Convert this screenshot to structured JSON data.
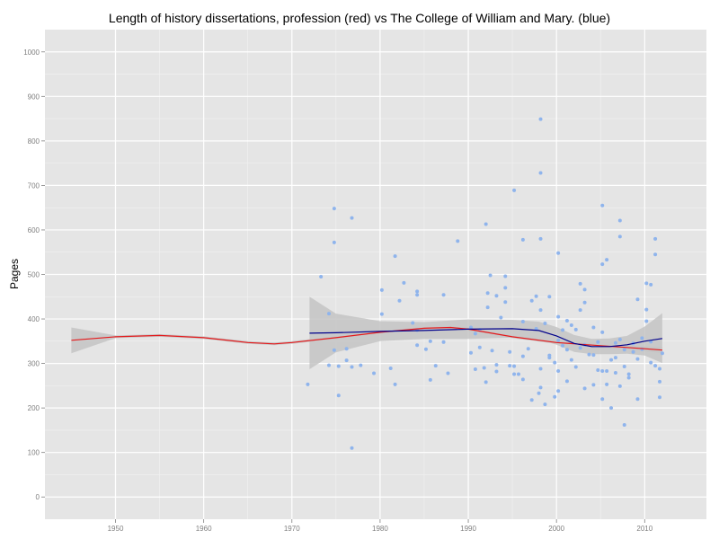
{
  "chart_data": {
    "type": "scatter",
    "title": "Length of history dissertations, profession (red) vs The College of William and Mary. (blue)",
    "xlabel": "",
    "ylabel": "Pages",
    "xlim": [
      1942,
      2017
    ],
    "ylim": [
      -50,
      1050
    ],
    "x_ticks": [
      1950,
      1960,
      1970,
      1980,
      1990,
      2000,
      2010
    ],
    "y_ticks": [
      0,
      100,
      200,
      300,
      400,
      500,
      600,
      700,
      800,
      900,
      1000
    ],
    "grid": true,
    "legend": "none",
    "colors": {
      "panel": "#e5e5e5",
      "grid_major": "#ffffff",
      "grid_minor": "#f2f2f2",
      "points": "#8fb4ec",
      "band": "#c4c4c4",
      "profession_line": "#e41a1c",
      "wm_line": "#00008b"
    },
    "series": [
      {
        "kind": "points",
        "values": [
          [
            1971.8,
            253
          ],
          [
            1973.3,
            495
          ],
          [
            1974.2,
            412
          ],
          [
            1974.2,
            296
          ],
          [
            1974.8,
            648
          ],
          [
            1974.8,
            572
          ],
          [
            1974.8,
            330
          ],
          [
            1975.3,
            228
          ],
          [
            1975.3,
            294
          ],
          [
            1976.2,
            307
          ],
          [
            1976.2,
            333
          ],
          [
            1976.8,
            627
          ],
          [
            1976.8,
            110
          ],
          [
            1976.8,
            292
          ],
          [
            1977.8,
            296
          ],
          [
            1979.3,
            278
          ],
          [
            1980.2,
            465
          ],
          [
            1980.2,
            411
          ],
          [
            1981.2,
            289
          ],
          [
            1981.7,
            541
          ],
          [
            1981.7,
            253
          ],
          [
            1982.2,
            441
          ],
          [
            1982.7,
            481
          ],
          [
            1983.7,
            391
          ],
          [
            1984.2,
            454
          ],
          [
            1984.2,
            462
          ],
          [
            1984.2,
            375
          ],
          [
            1984.2,
            341
          ],
          [
            1985.2,
            332
          ],
          [
            1985.7,
            263
          ],
          [
            1985.7,
            350
          ],
          [
            1986.3,
            295
          ],
          [
            1987.2,
            348
          ],
          [
            1987.2,
            454
          ],
          [
            1987.7,
            278
          ],
          [
            1988.8,
            575
          ],
          [
            1990.3,
            381
          ],
          [
            1990.3,
            324
          ],
          [
            1990.8,
            287
          ],
          [
            1990.8,
            367
          ],
          [
            1991.3,
            375
          ],
          [
            1991.3,
            336
          ],
          [
            1991.8,
            290
          ],
          [
            1992.0,
            613
          ],
          [
            1992.0,
            258
          ],
          [
            1992.2,
            426
          ],
          [
            1992.2,
            458
          ],
          [
            1992.5,
            498
          ],
          [
            1992.7,
            329
          ],
          [
            1993.2,
            297
          ],
          [
            1993.2,
            452
          ],
          [
            1993.2,
            282
          ],
          [
            1993.7,
            403
          ],
          [
            1994.2,
            496
          ],
          [
            1994.2,
            470
          ],
          [
            1994.2,
            438
          ],
          [
            1994.7,
            295
          ],
          [
            1994.7,
            326
          ],
          [
            1995.2,
            689
          ],
          [
            1995.2,
            276
          ],
          [
            1995.2,
            294
          ],
          [
            1995.7,
            276
          ],
          [
            1996.2,
            578
          ],
          [
            1996.2,
            394
          ],
          [
            1996.2,
            316
          ],
          [
            1996.2,
            264
          ],
          [
            1996.8,
            333
          ],
          [
            1997.2,
            441
          ],
          [
            1997.2,
            218
          ],
          [
            1997.7,
            451
          ],
          [
            1997.7,
            378
          ],
          [
            1998.0,
            233
          ],
          [
            1998.2,
            580
          ],
          [
            1998.2,
            728
          ],
          [
            1998.2,
            849
          ],
          [
            1998.2,
            420
          ],
          [
            1998.2,
            288
          ],
          [
            1998.2,
            246
          ],
          [
            1998.7,
            208
          ],
          [
            1998.7,
            390
          ],
          [
            1999.2,
            450
          ],
          [
            1999.2,
            318
          ],
          [
            1999.2,
            313
          ],
          [
            1999.8,
            302
          ],
          [
            1999.8,
            225
          ],
          [
            2000.2,
            548
          ],
          [
            2000.2,
            405
          ],
          [
            2000.2,
            352
          ],
          [
            2000.2,
            283
          ],
          [
            2000.2,
            238
          ],
          [
            2000.7,
            375
          ],
          [
            2000.7,
            340
          ],
          [
            2001.2,
            396
          ],
          [
            2001.2,
            331
          ],
          [
            2001.2,
            260
          ],
          [
            2001.7,
            386
          ],
          [
            2001.7,
            308
          ],
          [
            2002.2,
            376
          ],
          [
            2002.2,
            292
          ],
          [
            2002.7,
            479
          ],
          [
            2002.7,
            420
          ],
          [
            2002.7,
            335
          ],
          [
            2003.2,
            466
          ],
          [
            2003.2,
            437
          ],
          [
            2003.2,
            342
          ],
          [
            2003.2,
            244
          ],
          [
            2003.7,
            320
          ],
          [
            2004.2,
            381
          ],
          [
            2004.2,
            319
          ],
          [
            2004.2,
            252
          ],
          [
            2004.7,
            285
          ],
          [
            2005.2,
            655
          ],
          [
            2005.2,
            523
          ],
          [
            2005.2,
            370
          ],
          [
            2005.2,
            283
          ],
          [
            2005.2,
            220
          ],
          [
            2005.7,
            533
          ],
          [
            2005.7,
            283
          ],
          [
            2005.7,
            253
          ],
          [
            2006.2,
            200
          ],
          [
            2006.2,
            308
          ],
          [
            2006.7,
            346
          ],
          [
            2006.7,
            279
          ],
          [
            2007.2,
            585
          ],
          [
            2007.2,
            621
          ],
          [
            2007.2,
            354
          ],
          [
            2007.2,
            249
          ],
          [
            2007.7,
            331
          ],
          [
            2007.7,
            293
          ],
          [
            2007.7,
            162
          ],
          [
            2008.2,
            276
          ],
          [
            2008.2,
            268
          ],
          [
            2008.7,
            345
          ],
          [
            2009.2,
            444
          ],
          [
            2009.2,
            220
          ],
          [
            2009.7,
            357
          ],
          [
            2009.7,
            332
          ],
          [
            2010.2,
            395
          ],
          [
            2010.2,
            480
          ],
          [
            2010.2,
            421
          ],
          [
            2010.7,
            477
          ],
          [
            2010.7,
            302
          ],
          [
            2010.7,
            349
          ],
          [
            2011.2,
            580
          ],
          [
            2011.2,
            545
          ],
          [
            2011.2,
            295
          ],
          [
            2011.7,
            224
          ],
          [
            2011.7,
            259
          ],
          [
            2011.7,
            288
          ],
          [
            2012.0,
            323
          ],
          [
            2008.7,
            326
          ],
          [
            2009.2,
            310
          ],
          [
            2006.7,
            313
          ],
          [
            2004.7,
            348
          ]
        ]
      },
      {
        "kind": "smooth",
        "line_color": "#e41a1c",
        "values": [
          [
            1945,
            352
          ],
          [
            1950,
            360
          ],
          [
            1955,
            363
          ],
          [
            1960,
            358
          ],
          [
            1965,
            347
          ],
          [
            1968,
            344
          ],
          [
            1970,
            347
          ],
          [
            1975,
            358
          ],
          [
            1980,
            370
          ],
          [
            1985,
            379
          ],
          [
            1988,
            381
          ],
          [
            1990,
            377
          ],
          [
            1995,
            360
          ],
          [
            2000,
            347
          ],
          [
            2005,
            340
          ],
          [
            2008,
            336
          ],
          [
            2010,
            333
          ],
          [
            2012,
            330
          ]
        ],
        "band_low": [
          [
            1945,
            323
          ],
          [
            1950,
            357
          ],
          [
            1955,
            360
          ],
          [
            1960,
            355
          ],
          [
            1965,
            344
          ],
          [
            1968,
            341
          ],
          [
            1970,
            344
          ],
          [
            1975,
            355
          ],
          [
            1980,
            367
          ],
          [
            1985,
            376
          ],
          [
            1988,
            378
          ],
          [
            1990,
            374
          ],
          [
            1995,
            357
          ],
          [
            2000,
            344
          ],
          [
            2005,
            337
          ],
          [
            2008,
            332
          ],
          [
            2010,
            328
          ],
          [
            2012,
            323
          ]
        ],
        "band_high": [
          [
            1945,
            381
          ],
          [
            1950,
            363
          ],
          [
            1955,
            366
          ],
          [
            1960,
            361
          ],
          [
            1965,
            350
          ],
          [
            1968,
            347
          ],
          [
            1970,
            350
          ],
          [
            1975,
            361
          ],
          [
            1980,
            373
          ],
          [
            1985,
            382
          ],
          [
            1988,
            384
          ],
          [
            1990,
            380
          ],
          [
            1995,
            363
          ],
          [
            2000,
            350
          ],
          [
            2005,
            343
          ],
          [
            2008,
            340
          ],
          [
            2010,
            338
          ],
          [
            2012,
            337
          ]
        ]
      },
      {
        "kind": "smooth",
        "line_color": "#00008b",
        "values": [
          [
            1972,
            368
          ],
          [
            1975,
            369
          ],
          [
            1980,
            372
          ],
          [
            1985,
            374
          ],
          [
            1990,
            377
          ],
          [
            1995,
            378
          ],
          [
            1998,
            374
          ],
          [
            2000,
            362
          ],
          [
            2002,
            345
          ],
          [
            2004,
            338
          ],
          [
            2006,
            338
          ],
          [
            2008,
            342
          ],
          [
            2010,
            350
          ],
          [
            2012,
            356
          ]
        ],
        "band_low": [
          [
            1972,
            287
          ],
          [
            1975,
            325
          ],
          [
            1980,
            350
          ],
          [
            1985,
            355
          ],
          [
            1990,
            355
          ],
          [
            1995,
            358
          ],
          [
            1998,
            354
          ],
          [
            2000,
            342
          ],
          [
            2002,
            326
          ],
          [
            2004,
            321
          ],
          [
            2006,
            321
          ],
          [
            2008,
            322
          ],
          [
            2010,
            318
          ],
          [
            2012,
            301
          ]
        ],
        "band_high": [
          [
            1972,
            450
          ],
          [
            1975,
            412
          ],
          [
            1980,
            395
          ],
          [
            1985,
            393
          ],
          [
            1990,
            399
          ],
          [
            1995,
            398
          ],
          [
            1998,
            394
          ],
          [
            2000,
            382
          ],
          [
            2002,
            364
          ],
          [
            2004,
            355
          ],
          [
            2006,
            356
          ],
          [
            2008,
            362
          ],
          [
            2010,
            383
          ],
          [
            2012,
            413
          ]
        ]
      }
    ]
  }
}
